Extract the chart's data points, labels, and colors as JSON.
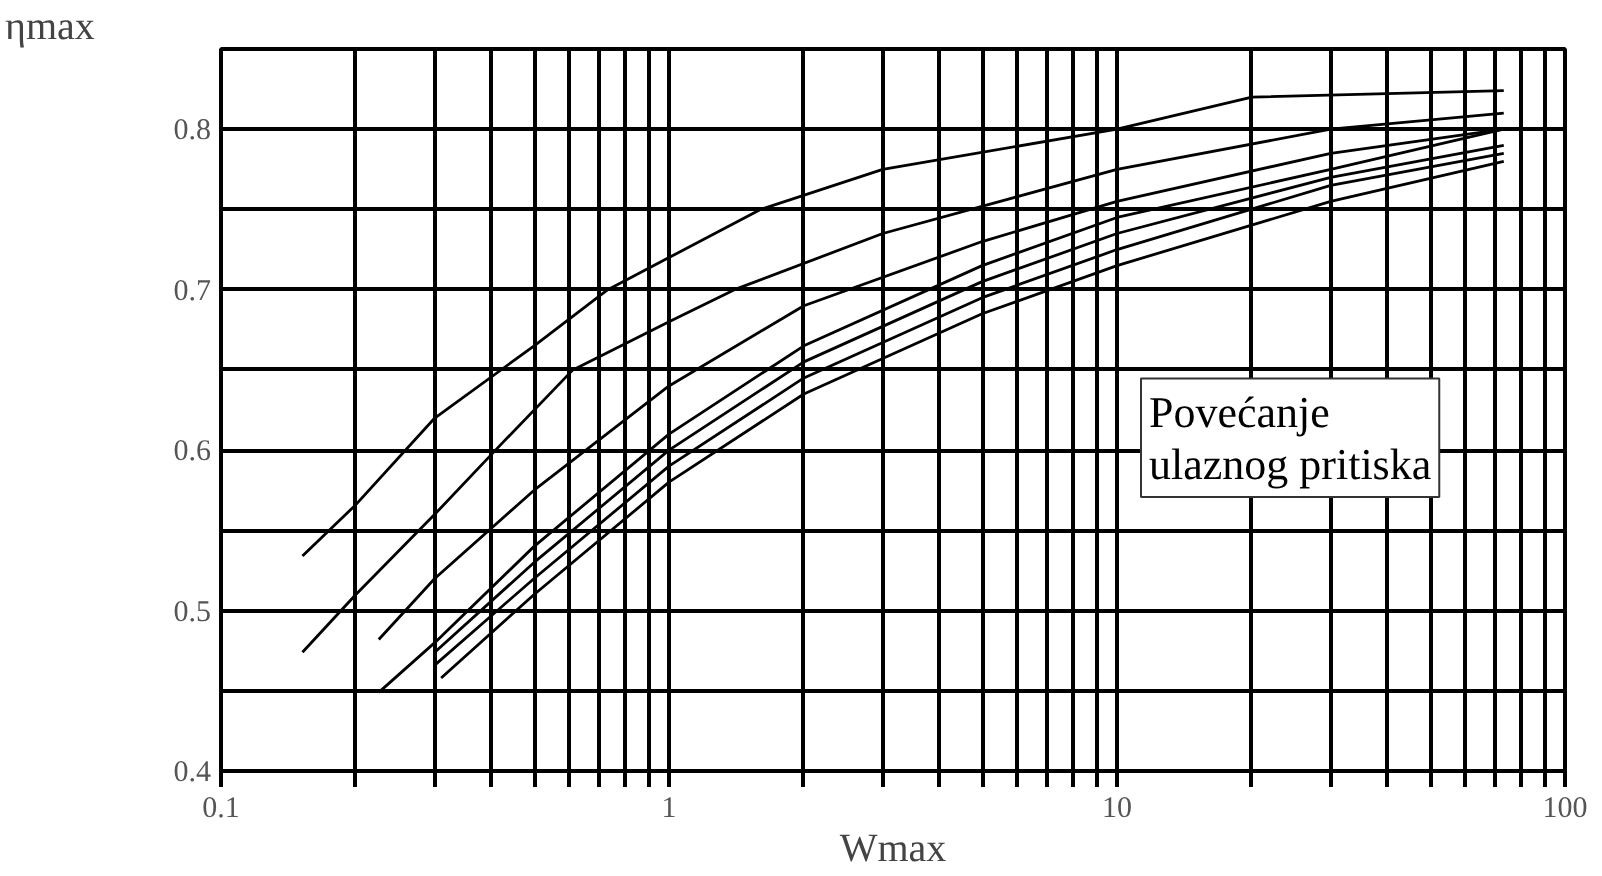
{
  "chart_data": {
    "type": "line",
    "xlabel": "Wmax",
    "ylabel": "ηmax",
    "log": "x",
    "xlim": [
      0.1,
      100
    ],
    "ylim": [
      0.4,
      0.85
    ],
    "xticks": [
      0.1,
      {
        "value": 0.2,
        "label": null
      },
      {
        "value": 0.3,
        "label": null
      },
      {
        "value": 0.4,
        "label": null
      },
      {
        "value": 0.5,
        "label": null
      },
      {
        "value": 0.6,
        "label": null
      },
      {
        "value": 0.7,
        "label": null
      },
      {
        "value": 0.8,
        "label": null
      },
      {
        "value": 0.9,
        "label": null
      },
      1,
      {
        "value": 2,
        "label": null
      },
      {
        "value": 3,
        "label": null
      },
      {
        "value": 4,
        "label": null
      },
      {
        "value": 5,
        "label": null
      },
      {
        "value": 6,
        "label": null
      },
      {
        "value": 7,
        "label": null
      },
      {
        "value": 8,
        "label": null
      },
      {
        "value": 9,
        "label": null
      },
      10,
      {
        "value": 20,
        "label": null
      },
      {
        "value": 30,
        "label": null
      },
      {
        "value": 40,
        "label": null
      },
      {
        "value": 50,
        "label": null
      },
      {
        "value": 60,
        "label": null
      },
      {
        "value": 70,
        "label": null
      },
      {
        "value": 80,
        "label": null
      },
      {
        "value": 90,
        "label": null
      },
      100
    ],
    "yticks": [
      0.4,
      {
        "value": 0.45,
        "label": null
      },
      0.5,
      {
        "value": 0.55,
        "label": null
      },
      0.6,
      {
        "value": 0.65,
        "label": null
      },
      0.7,
      {
        "value": 0.75,
        "label": null
      },
      0.8
    ],
    "grid": true,
    "marker": "none",
    "line_style": "solid",
    "annotations": [
      "Povećanje\nulaznog pritiska"
    ],
    "series": [
      {
        "color": "#000000",
        "x": [
          0.152,
          0.2,
          0.3,
          0.5,
          0.73,
          1,
          1.6,
          3,
          10,
          20,
          73
        ],
        "values": [
          0.534,
          0.566,
          0.62,
          0.665,
          0.7,
          0.72,
          0.75,
          0.775,
          0.8,
          0.82,
          0.824
        ]
      },
      {
        "color": "#000000",
        "x": [
          0.152,
          0.2,
          0.3,
          0.41,
          0.61,
          1,
          1.4,
          3,
          10,
          30,
          73
        ],
        "values": [
          0.474,
          0.51,
          0.56,
          0.6,
          0.65,
          0.68,
          0.7,
          0.735,
          0.775,
          0.8,
          0.81
        ]
      },
      {
        "color": "#000000",
        "x": [
          0.225,
          0.3,
          0.5,
          1,
          2,
          5,
          10,
          30,
          73
        ],
        "values": [
          0.482,
          0.52,
          0.575,
          0.64,
          0.69,
          0.73,
          0.755,
          0.785,
          0.8
        ]
      },
      {
        "color": "#000000",
        "x": [
          0.225,
          0.3,
          0.5,
          1,
          2,
          5,
          10,
          30,
          73
        ],
        "values": [
          0.449,
          0.48,
          0.54,
          0.61,
          0.665,
          0.715,
          0.745,
          0.775,
          0.8
        ]
      },
      {
        "color": "#000000",
        "x": [
          0.3,
          0.5,
          1,
          2,
          5,
          10,
          30,
          73
        ],
        "values": [
          0.474,
          0.53,
          0.6,
          0.655,
          0.705,
          0.735,
          0.77,
          0.79
        ]
      },
      {
        "color": "#000000",
        "x": [
          0.3,
          0.5,
          1,
          2,
          5,
          10,
          30,
          73
        ],
        "values": [
          0.466,
          0.52,
          0.59,
          0.645,
          0.695,
          0.725,
          0.765,
          0.785
        ]
      },
      {
        "color": "#000000",
        "x": [
          0.31,
          0.5,
          1,
          2,
          5,
          10,
          30,
          73
        ],
        "values": [
          0.458,
          0.51,
          0.58,
          0.635,
          0.685,
          0.715,
          0.755,
          0.78
        ]
      }
    ]
  }
}
